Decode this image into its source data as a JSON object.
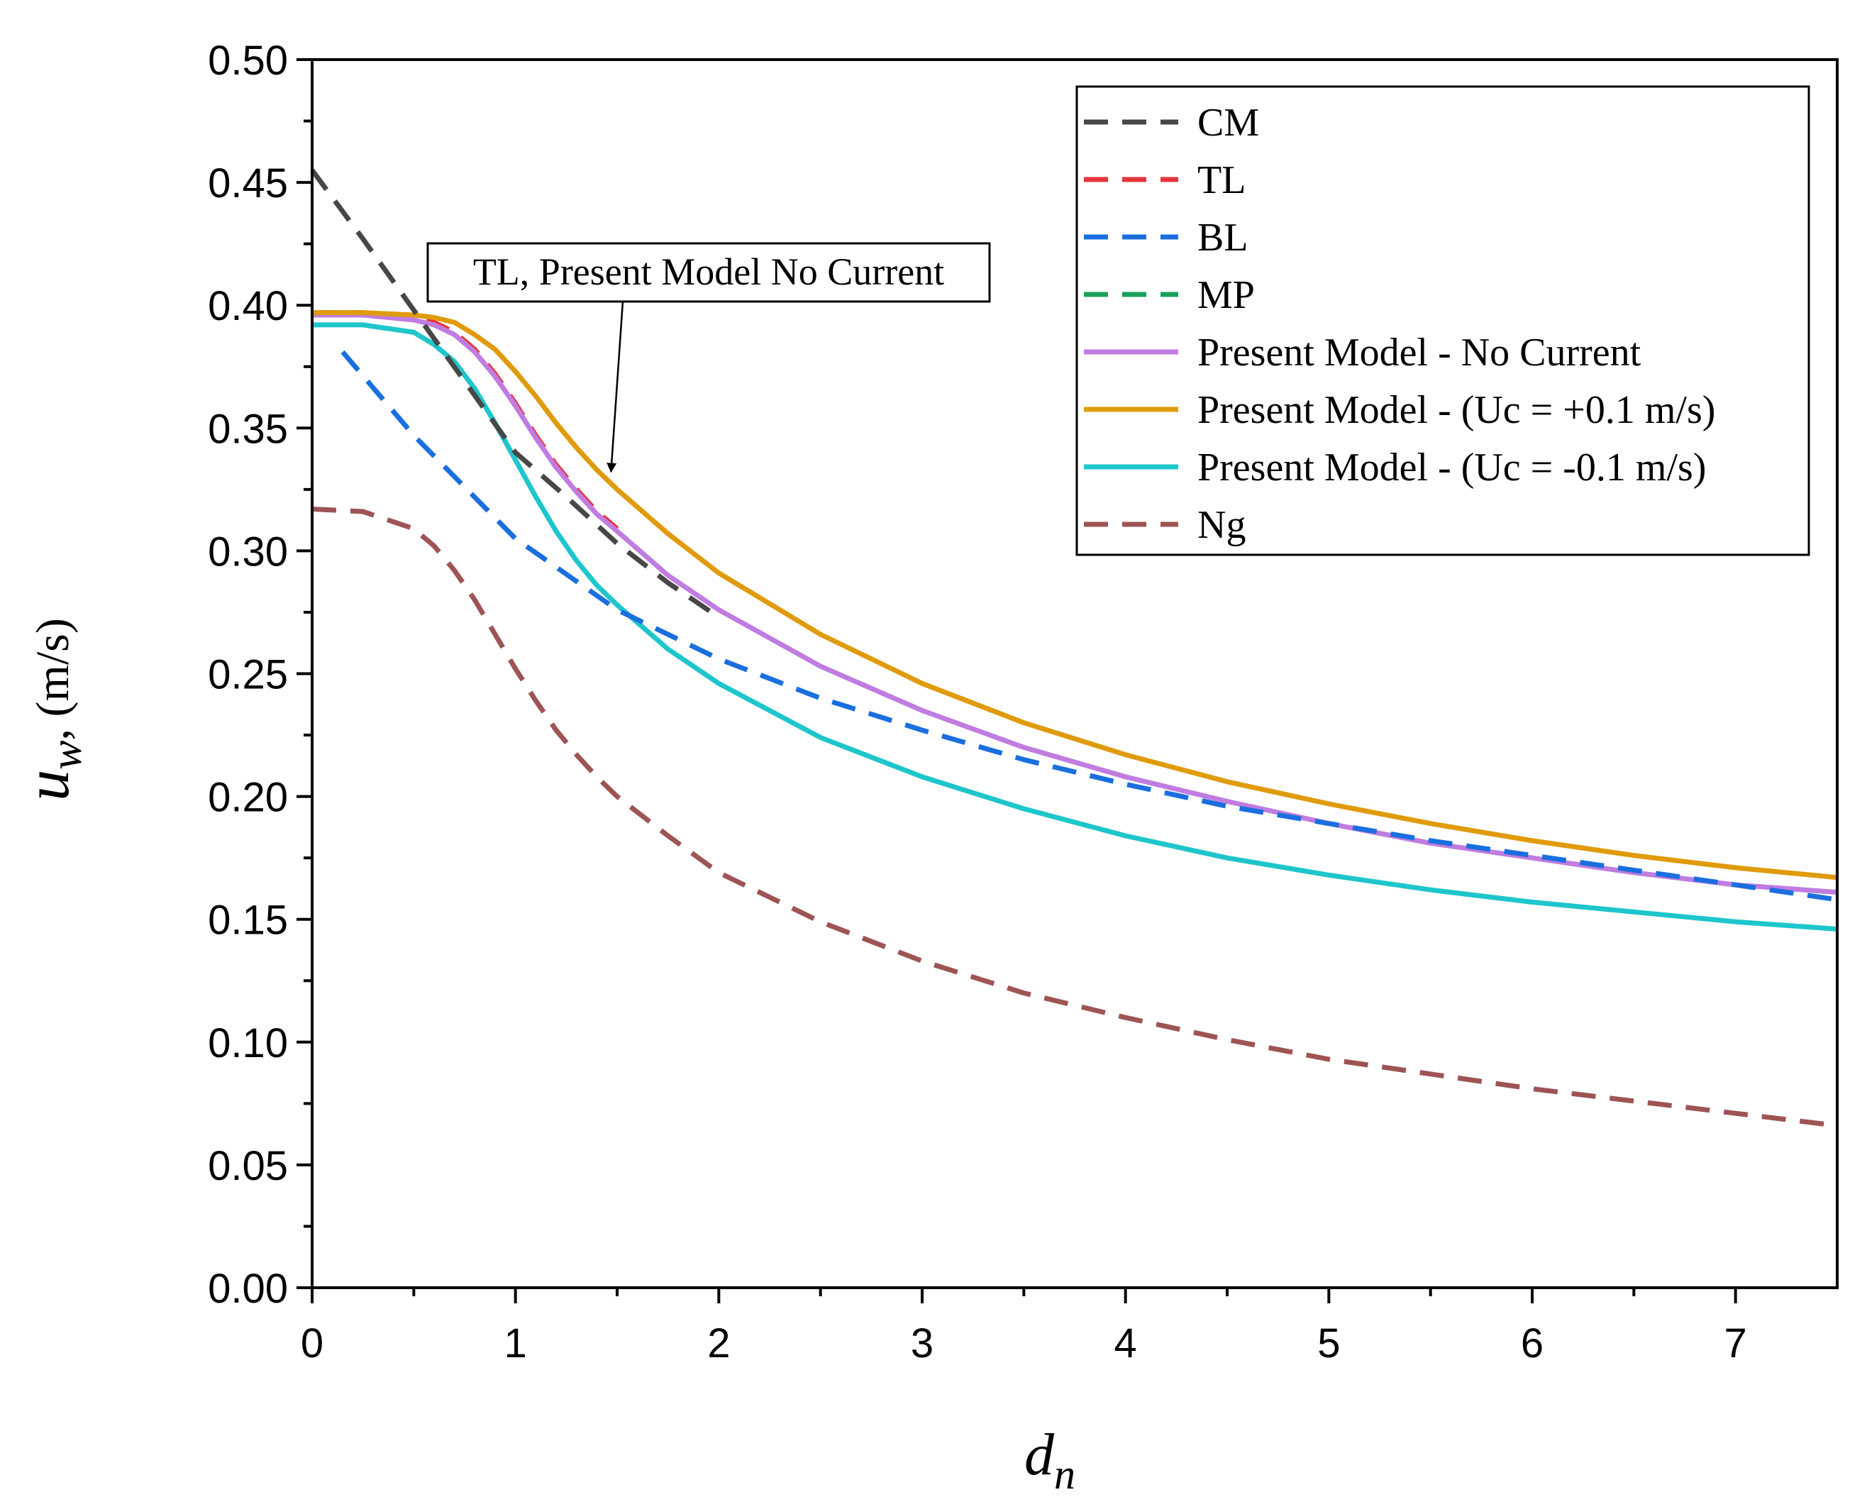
{
  "chart_data": {
    "type": "line",
    "title": "",
    "xlabel": {
      "main": "d",
      "sub": "n"
    },
    "ylabel": {
      "main": "u",
      "sub": "w",
      "unit": ", (m/s)"
    },
    "xlim": [
      0,
      7.5
    ],
    "ylim": [
      0,
      0.5
    ],
    "x_ticks": [
      "0",
      "1",
      "2",
      "3",
      "4",
      "5",
      "6",
      "7"
    ],
    "x_tick_values": [
      0,
      1,
      2,
      3,
      4,
      5,
      6,
      7
    ],
    "y_ticks": [
      "0.00",
      "0.05",
      "0.10",
      "0.15",
      "0.20",
      "0.25",
      "0.30",
      "0.35",
      "0.40",
      "0.45",
      "0.50"
    ],
    "y_tick_values": [
      0,
      0.05,
      0.1,
      0.15,
      0.2,
      0.25,
      0.3,
      0.35,
      0.4,
      0.45,
      0.5
    ],
    "grid": false,
    "legend_position": "top-right",
    "annotation": {
      "text": "TL, Present Model No Current",
      "arrow_target": [
        1.47,
        0.33
      ]
    },
    "series": [
      {
        "name": "CM",
        "color": "#474747",
        "dashed": true,
        "x": [
          0,
          0.25,
          0.5,
          0.75,
          1.0,
          1.25,
          1.5,
          1.75,
          2.0
        ],
        "y": [
          0.455,
          0.427,
          0.398,
          0.369,
          0.34,
          0.322,
          0.303,
          0.287,
          0.273
        ]
      },
      {
        "name": "TL",
        "color": "#e8333a",
        "dashed": true,
        "x": [
          0,
          0.25,
          0.5,
          0.6,
          0.7,
          0.8,
          0.9,
          1.0,
          1.1,
          1.2,
          1.3,
          1.4,
          1.5
        ],
        "y": [
          0.397,
          0.397,
          0.395,
          0.393,
          0.389,
          0.382,
          0.372,
          0.36,
          0.347,
          0.335,
          0.325,
          0.316,
          0.309
        ]
      },
      {
        "name": "BL",
        "color": "#1a6fdf",
        "dashed": true,
        "x": [
          0.15,
          0.5,
          1.0,
          1.5,
          2.0,
          2.5,
          3.0,
          3.5,
          4.0,
          4.5,
          5.0,
          5.5,
          6.0,
          6.5,
          7.0,
          7.5
        ],
        "y": [
          0.381,
          0.347,
          0.305,
          0.276,
          0.256,
          0.24,
          0.227,
          0.215,
          0.205,
          0.196,
          0.189,
          0.182,
          0.176,
          0.17,
          0.164,
          0.158
        ]
      },
      {
        "name": "MP",
        "color": "#1aa05a",
        "dashed": true,
        "x": [],
        "y": []
      },
      {
        "name": "Present Model - No Current",
        "color": "#c07ce0",
        "dashed": false,
        "x": [
          0,
          0.25,
          0.5,
          0.6,
          0.7,
          0.8,
          0.9,
          1.0,
          1.1,
          1.2,
          1.3,
          1.4,
          1.5,
          1.75,
          2.0,
          2.5,
          3.0,
          3.5,
          4.0,
          4.5,
          5.0,
          5.5,
          6.0,
          6.5,
          7.0,
          7.5
        ],
        "y": [
          0.396,
          0.396,
          0.394,
          0.392,
          0.388,
          0.381,
          0.371,
          0.359,
          0.346,
          0.334,
          0.324,
          0.315,
          0.308,
          0.29,
          0.276,
          0.253,
          0.235,
          0.22,
          0.208,
          0.198,
          0.189,
          0.181,
          0.175,
          0.169,
          0.164,
          0.161
        ]
      },
      {
        "name": "Present Model - (Uc = +0.1 m/s)",
        "color": "#e09b0c",
        "dashed": false,
        "x": [
          0,
          0.25,
          0.5,
          0.6,
          0.7,
          0.8,
          0.9,
          1.0,
          1.1,
          1.2,
          1.3,
          1.4,
          1.5,
          1.75,
          2.0,
          2.5,
          3.0,
          3.5,
          4.0,
          4.5,
          5.0,
          5.5,
          6.0,
          6.5,
          7.0,
          7.5
        ],
        "y": [
          0.397,
          0.397,
          0.396,
          0.395,
          0.393,
          0.388,
          0.382,
          0.373,
          0.363,
          0.352,
          0.342,
          0.333,
          0.325,
          0.307,
          0.291,
          0.266,
          0.246,
          0.23,
          0.217,
          0.206,
          0.197,
          0.189,
          0.182,
          0.176,
          0.171,
          0.167
        ]
      },
      {
        "name": "Present Model - (Uc = -0.1 m/s)",
        "color": "#1ec6cc",
        "dashed": false,
        "x": [
          0,
          0.25,
          0.5,
          0.6,
          0.7,
          0.8,
          0.9,
          1.0,
          1.1,
          1.2,
          1.3,
          1.4,
          1.5,
          1.75,
          2.0,
          2.5,
          3.0,
          3.5,
          4.0,
          4.5,
          5.0,
          5.5,
          6.0,
          6.5,
          7.0,
          7.5
        ],
        "y": [
          0.392,
          0.392,
          0.389,
          0.384,
          0.377,
          0.366,
          0.352,
          0.337,
          0.322,
          0.308,
          0.296,
          0.286,
          0.278,
          0.26,
          0.246,
          0.224,
          0.208,
          0.195,
          0.184,
          0.175,
          0.168,
          0.162,
          0.157,
          0.153,
          0.149,
          0.146
        ]
      },
      {
        "name": "Ng",
        "color": "#9e5454",
        "dashed": true,
        "x": [
          0,
          0.25,
          0.5,
          0.6,
          0.7,
          0.8,
          0.9,
          1.0,
          1.1,
          1.2,
          1.3,
          1.4,
          1.5,
          1.75,
          2.0,
          2.5,
          3.0,
          3.5,
          4.0,
          4.5,
          5.0,
          5.5,
          6.0,
          6.5,
          7.0,
          7.5
        ],
        "y": [
          0.317,
          0.316,
          0.309,
          0.302,
          0.292,
          0.28,
          0.266,
          0.252,
          0.239,
          0.227,
          0.217,
          0.208,
          0.2,
          0.184,
          0.169,
          0.149,
          0.133,
          0.12,
          0.11,
          0.101,
          0.093,
          0.087,
          0.081,
          0.076,
          0.071,
          0.066
        ]
      }
    ]
  }
}
